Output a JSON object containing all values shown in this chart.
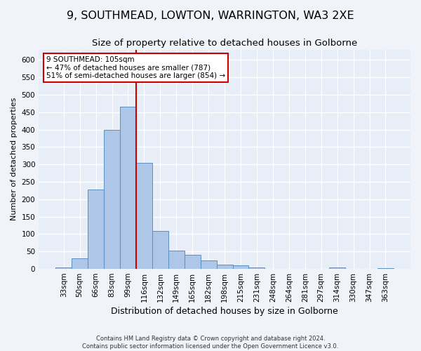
{
  "title": "9, SOUTHMEAD, LOWTON, WARRINGTON, WA3 2XE",
  "subtitle": "Size of property relative to detached houses in Golborne",
  "xlabel": "Distribution of detached houses by size in Golborne",
  "ylabel": "Number of detached properties",
  "footer_line1": "Contains HM Land Registry data © Crown copyright and database right 2024.",
  "footer_line2": "Contains public sector information licensed under the Open Government Licence v3.0.",
  "categories": [
    "33sqm",
    "50sqm",
    "66sqm",
    "83sqm",
    "99sqm",
    "116sqm",
    "132sqm",
    "149sqm",
    "165sqm",
    "182sqm",
    "198sqm",
    "215sqm",
    "231sqm",
    "248sqm",
    "264sqm",
    "281sqm",
    "297sqm",
    "314sqm",
    "330sqm",
    "347sqm",
    "363sqm"
  ],
  "values": [
    5,
    30,
    228,
    400,
    465,
    305,
    110,
    53,
    40,
    25,
    12,
    11,
    4,
    0,
    0,
    0,
    0,
    5,
    0,
    0,
    2
  ],
  "bar_color": "#aec6e8",
  "bar_edge_color": "#5a8fc2",
  "property_line_x": 4.5,
  "annotation_text_line1": "9 SOUTHMEAD: 105sqm",
  "annotation_text_line2": "← 47% of detached houses are smaller (787)",
  "annotation_text_line3": "51% of semi-detached houses are larger (854) →",
  "annotation_box_color": "#ffffff",
  "annotation_border_color": "#cc0000",
  "vline_color": "#cc0000",
  "ylim": [
    0,
    630
  ],
  "yticks": [
    0,
    50,
    100,
    150,
    200,
    250,
    300,
    350,
    400,
    450,
    500,
    550,
    600
  ],
  "background_color": "#f0f4fa",
  "plot_background_color": "#e8eef7",
  "grid_color": "#ffffff",
  "title_fontsize": 11.5,
  "subtitle_fontsize": 9.5,
  "xlabel_fontsize": 9,
  "ylabel_fontsize": 8,
  "tick_fontsize": 7.5,
  "footer_fontsize": 6
}
